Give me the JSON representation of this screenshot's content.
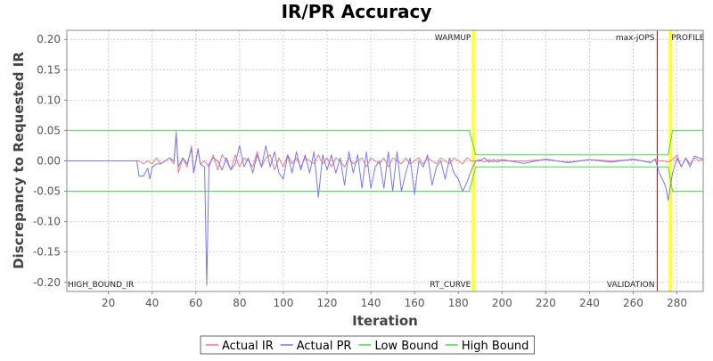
{
  "chart_data": {
    "type": "line",
    "title": "IR/PR Accuracy",
    "xlabel": "Iteration",
    "ylabel": "Discrepancy to Requested IR",
    "xlim": [
      1,
      292
    ],
    "ylim": [
      -0.215,
      0.215
    ],
    "x_ticks": [
      20,
      40,
      60,
      80,
      100,
      120,
      140,
      160,
      180,
      200,
      220,
      240,
      260,
      280
    ],
    "y_ticks": [
      0.2,
      0.15,
      0.1,
      0.05,
      0.0,
      -0.05,
      -0.1,
      -0.15,
      -0.2
    ],
    "grid": true,
    "legend_position": "bottom",
    "markers": [
      {
        "label": "WARMUP",
        "x": 187,
        "color": "#ffff33",
        "text_pos": "top"
      },
      {
        "label": "RT_CURVE",
        "x": 187,
        "color": "#ffff33",
        "text_pos": "bottom"
      },
      {
        "label": "max-jOPS",
        "x": 271,
        "color": "#cc0000",
        "text_pos": "top"
      },
      {
        "label": "VALIDATION",
        "x": 271,
        "color": "#cc0000",
        "text_pos": "bottom"
      },
      {
        "label": "PROFILE",
        "x": 277,
        "color": "#ffff33",
        "text_pos": "top"
      },
      {
        "label": "HIGH_BOUND_IR",
        "x": 1,
        "color": "#000000",
        "text_pos": "bottom-left"
      }
    ],
    "series": [
      {
        "name": "Actual IR",
        "color": "#ff7777",
        "x": [
          1,
          34,
          36,
          38,
          40,
          42,
          44,
          46,
          48,
          50,
          51,
          52,
          54,
          56,
          58,
          59,
          60,
          61,
          62,
          64,
          66,
          68,
          70,
          72,
          74,
          76,
          78,
          80,
          82,
          84,
          86,
          88,
          90,
          92,
          94,
          96,
          98,
          100,
          102,
          104,
          106,
          108,
          110,
          112,
          114,
          116,
          118,
          120,
          122,
          124,
          126,
          128,
          130,
          132,
          134,
          136,
          138,
          140,
          142,
          144,
          146,
          148,
          150,
          152,
          154,
          156,
          158,
          160,
          162,
          164,
          166,
          168,
          170,
          172,
          174,
          176,
          178,
          180,
          182,
          184,
          186,
          188,
          190,
          192,
          194,
          196,
          198,
          200,
          210,
          220,
          230,
          240,
          250,
          260,
          268,
          270,
          272,
          274,
          276,
          278,
          280,
          282,
          284,
          286,
          288,
          290,
          292
        ],
        "y": [
          0.0,
          0.0,
          -0.005,
          0.0,
          -0.005,
          0.005,
          -0.005,
          0.0,
          0.005,
          -0.005,
          0.048,
          -0.02,
          0.005,
          -0.01,
          0.025,
          -0.02,
          0.0,
          0.02,
          -0.005,
          0.0,
          -0.01,
          0.01,
          -0.015,
          0.01,
          0.0,
          -0.015,
          0.01,
          -0.01,
          0.005,
          0.0,
          -0.01,
          0.015,
          -0.01,
          0.005,
          0.01,
          -0.015,
          0.005,
          -0.01,
          0.01,
          -0.005,
          0.005,
          -0.01,
          0.005,
          0.0,
          -0.005,
          0.01,
          -0.005,
          0.005,
          -0.01,
          0.005,
          0.0,
          -0.01,
          0.005,
          -0.005,
          0.0,
          0.005,
          -0.01,
          0.005,
          0.0,
          -0.005,
          0.005,
          -0.01,
          0.005,
          0.0,
          -0.005,
          0.005,
          -0.005,
          0.0,
          0.005,
          -0.005,
          0.005,
          0.0,
          -0.005,
          0.005,
          0.0,
          -0.005,
          0.005,
          0.0,
          -0.005,
          0.005,
          0.0,
          0.0,
          0.002,
          -0.002,
          0.002,
          -0.002,
          0.002,
          0.0,
          0.0,
          0.002,
          -0.002,
          0.002,
          0.0,
          0.002,
          -0.002,
          0.002,
          0.0,
          0.0,
          -0.002,
          0.002,
          0.01,
          -0.01,
          0.005,
          -0.005,
          0.005,
          0.0,
          0.003
        ]
      },
      {
        "name": "Actual PR",
        "color": "#7777ff",
        "x": [
          1,
          33,
          34,
          36,
          38,
          39,
          40,
          42,
          44,
          46,
          48,
          50,
          51,
          52,
          54,
          56,
          58,
          59,
          60,
          61,
          62,
          64,
          65,
          66,
          68,
          70,
          72,
          74,
          76,
          78,
          80,
          82,
          84,
          86,
          88,
          90,
          92,
          94,
          96,
          98,
          100,
          102,
          104,
          106,
          108,
          110,
          112,
          114,
          116,
          118,
          120,
          122,
          124,
          126,
          128,
          130,
          132,
          134,
          136,
          138,
          140,
          142,
          144,
          146,
          148,
          150,
          152,
          154,
          156,
          158,
          160,
          162,
          164,
          166,
          168,
          170,
          172,
          174,
          176,
          178,
          180,
          182,
          184,
          186,
          188,
          190,
          192,
          194,
          196,
          198,
          200,
          210,
          220,
          230,
          240,
          250,
          260,
          268,
          270,
          272,
          274,
          275,
          276,
          278,
          280,
          282,
          284,
          286,
          288,
          290,
          292
        ],
        "y": [
          0.0,
          0.0,
          -0.025,
          -0.025,
          -0.012,
          -0.03,
          -0.01,
          -0.005,
          -0.005,
          0.0,
          0.005,
          0.0,
          0.045,
          -0.01,
          0.005,
          -0.005,
          0.02,
          -0.02,
          0.0,
          0.02,
          -0.005,
          -0.01,
          -0.205,
          -0.005,
          0.005,
          0.0,
          -0.015,
          0.005,
          -0.015,
          -0.005,
          0.025,
          -0.01,
          0.005,
          -0.02,
          0.01,
          -0.01,
          0.025,
          -0.01,
          0.015,
          -0.02,
          -0.03,
          0.01,
          -0.02,
          0.015,
          -0.015,
          0.01,
          -0.02,
          0.015,
          -0.06,
          0.01,
          -0.015,
          0.01,
          -0.02,
          0.005,
          -0.04,
          0.015,
          -0.02,
          0.01,
          -0.045,
          0.015,
          -0.045,
          -0.01,
          0.0,
          -0.045,
          0.015,
          -0.05,
          0.015,
          -0.05,
          -0.02,
          0.005,
          -0.055,
          0.0,
          -0.01,
          0.01,
          -0.04,
          -0.01,
          0.0,
          -0.03,
          0.005,
          -0.02,
          -0.03,
          -0.05,
          -0.035,
          -0.015,
          0.0,
          0.0,
          0.005,
          -0.002,
          0.002,
          -0.002,
          0.002,
          -0.004,
          0.003,
          -0.003,
          0.002,
          -0.002,
          0.003,
          -0.003,
          0.003,
          -0.02,
          -0.035,
          -0.045,
          -0.065,
          -0.02,
          0.005,
          -0.01,
          0.005,
          -0.01,
          0.008,
          0.005,
          0.003
        ]
      },
      {
        "name": "Low Bound",
        "color": "#44dd44",
        "x": [
          1,
          185,
          188,
          270,
          272,
          276,
          278,
          292
        ],
        "y": [
          -0.05,
          -0.05,
          -0.01,
          -0.01,
          -0.01,
          -0.01,
          -0.05,
          -0.05
        ]
      },
      {
        "name": "High Bound",
        "color": "#44dd44",
        "x": [
          1,
          185,
          188,
          270,
          272,
          276,
          278,
          292
        ],
        "y": [
          0.05,
          0.05,
          0.01,
          0.01,
          0.01,
          0.01,
          0.05,
          0.05
        ]
      }
    ]
  }
}
